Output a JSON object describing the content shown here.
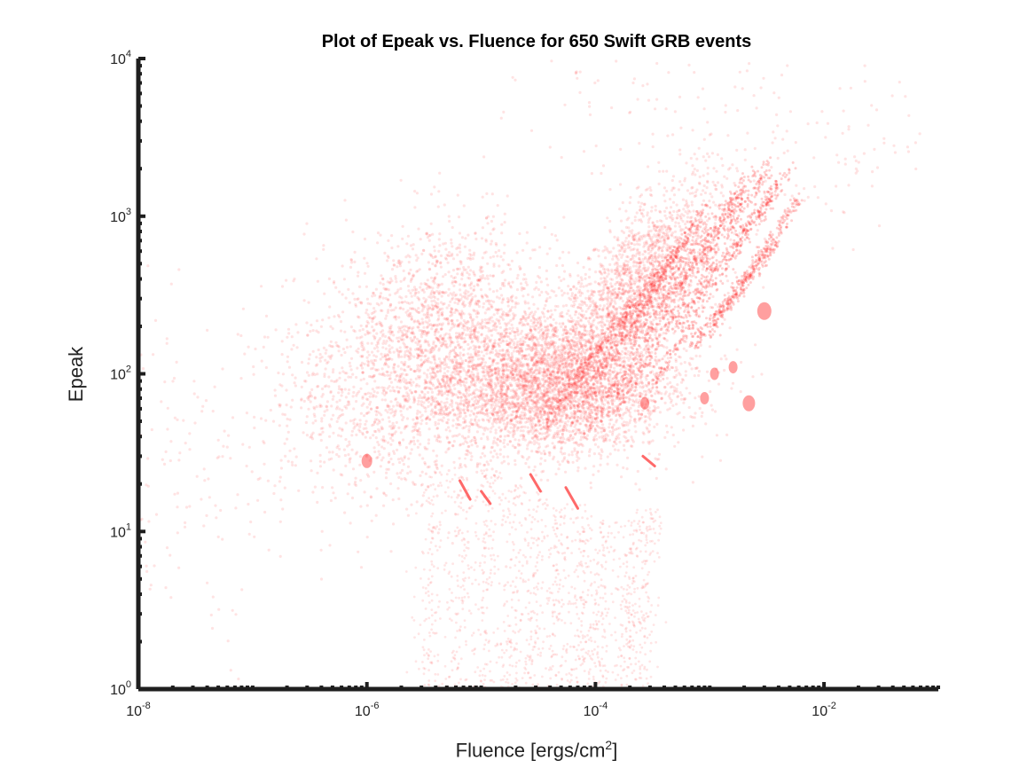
{
  "chart_data": {
    "type": "scatter",
    "title": "Plot of Epeak vs. Fluence for 650 Swift GRB events",
    "xlabel": "Fluence [ergs/cm",
    "xlabel_superscript": "2",
    "xlabel_suffix": "]",
    "ylabel": "Epeak",
    "xscale": "log",
    "yscale": "log",
    "xlim": [
      1e-08,
      0.1
    ],
    "ylim": [
      1,
      10000
    ],
    "x_ticks": [
      {
        "base": "10",
        "exp": "-8",
        "value": 1e-08
      },
      {
        "base": "10",
        "exp": "-6",
        "value": 1e-06
      },
      {
        "base": "10",
        "exp": "-4",
        "value": 0.0001
      },
      {
        "base": "10",
        "exp": "-2",
        "value": 0.01
      }
    ],
    "y_ticks": [
      {
        "base": "10",
        "exp": "0",
        "value": 1
      },
      {
        "base": "10",
        "exp": "1",
        "value": 10
      },
      {
        "base": "10",
        "exp": "2",
        "value": 100
      },
      {
        "base": "10",
        "exp": "3",
        "value": 1000
      },
      {
        "base": "10",
        "exp": "4",
        "value": 10000
      }
    ],
    "grid": false,
    "legend": "none",
    "marker_color": "#ff2a2a",
    "axis_color": "#1e1e1e",
    "density_clusters": [
      {
        "x": 3e-05,
        "y": 90,
        "sx": 0.55,
        "sy": 0.22,
        "rho": 0.15,
        "w": 0.34
      },
      {
        "x": 5e-06,
        "y": 200,
        "sx": 0.45,
        "sy": 0.32,
        "rho": 0.1,
        "w": 0.18
      },
      {
        "x": 0.0002,
        "y": 300,
        "sx": 0.4,
        "sy": 0.3,
        "rho": 0.65,
        "w": 0.16
      },
      {
        "x": 1e-06,
        "y": 60,
        "sx": 0.45,
        "sy": 0.35,
        "rho": 0.0,
        "w": 0.08
      },
      {
        "x": 0.0001,
        "y": 70,
        "sx": 0.45,
        "sy": 0.2,
        "rho": 0.2,
        "w": 0.12
      },
      {
        "x": 0.0003,
        "y": 600,
        "sx": 0.35,
        "sy": 0.28,
        "rho": 0.7,
        "w": 0.06
      },
      {
        "x": 2e-08,
        "y": 20,
        "sx": 0.5,
        "sy": 0.5,
        "rho": 0.0,
        "w": 0.02
      },
      {
        "x": 0.01,
        "y": 3000,
        "sx": 0.5,
        "sy": 0.3,
        "rho": 0.0,
        "w": 0.01
      },
      {
        "x": 0.0003,
        "y": 5000,
        "sx": 0.6,
        "sy": 0.25,
        "rho": 0.0,
        "w": 0.01
      }
    ],
    "vertical_streaks": [
      {
        "x": 7e-06,
        "y_top": 30
      },
      {
        "x": 1.2e-05,
        "y_top": 25
      },
      {
        "x": 2e-05,
        "y_top": 20
      },
      {
        "x": 3e-05,
        "y_top": 18
      },
      {
        "x": 5e-05,
        "y_top": 15
      },
      {
        "x": 8e-05,
        "y_top": 15
      },
      {
        "x": 0.00012,
        "y_top": 12
      },
      {
        "x": 0.0002,
        "y_top": 12
      },
      {
        "x": 0.0003,
        "y_top": 14
      },
      {
        "x": 4e-06,
        "y_top": 25
      }
    ],
    "diagonal_streaks": [
      {
        "x0": 8e-05,
        "y0": 40,
        "x1": 0.002,
        "y1": 1500
      },
      {
        "x0": 0.00015,
        "y0": 60,
        "x1": 0.003,
        "y1": 1800
      },
      {
        "x0": 0.0003,
        "y0": 80,
        "x1": 0.004,
        "y1": 1600
      },
      {
        "x0": 6e-05,
        "y0": 50,
        "x1": 0.001,
        "y1": 1200
      },
      {
        "x0": 0.0001,
        "y0": 100,
        "x1": 0.0025,
        "y1": 2000
      },
      {
        "x0": 0.0002,
        "y0": 150,
        "x1": 0.0035,
        "y1": 2200
      },
      {
        "x0": 4e-05,
        "y0": 60,
        "x1": 0.0008,
        "y1": 900
      },
      {
        "x0": 0.0005,
        "y0": 200,
        "x1": 0.005,
        "y1": 2000
      },
      {
        "x0": 0.0007,
        "y0": 150,
        "x1": 0.004,
        "y1": 700
      },
      {
        "x0": 3e-05,
        "y0": 40,
        "x1": 0.0005,
        "y1": 600
      },
      {
        "x0": 0.001,
        "y0": 180,
        "x1": 0.006,
        "y1": 1300
      }
    ],
    "blobs": [
      {
        "x": 1e-06,
        "y": 28,
        "r": 5
      },
      {
        "x": 0.0022,
        "y": 65,
        "r": 6
      },
      {
        "x": 0.003,
        "y": 250,
        "r": 7
      },
      {
        "x": 0.00027,
        "y": 65,
        "r": 4
      },
      {
        "x": 0.0011,
        "y": 100,
        "r": 4
      },
      {
        "x": 0.0016,
        "y": 110,
        "r": 4
      },
      {
        "x": 0.0009,
        "y": 70,
        "r": 4
      }
    ],
    "short_streaks": [
      {
        "x0": 6.5e-06,
        "y0": 21,
        "x1": 8e-06,
        "y1": 16
      },
      {
        "x0": 2.7e-05,
        "y0": 23,
        "x1": 3.3e-05,
        "y1": 18
      },
      {
        "x0": 5.5e-05,
        "y0": 19,
        "x1": 7e-05,
        "y1": 14
      },
      {
        "x0": 0.00026,
        "y0": 30,
        "x1": 0.00033,
        "y1": 26
      },
      {
        "x0": 1e-05,
        "y0": 18,
        "x1": 1.2e-05,
        "y1": 15
      }
    ]
  }
}
